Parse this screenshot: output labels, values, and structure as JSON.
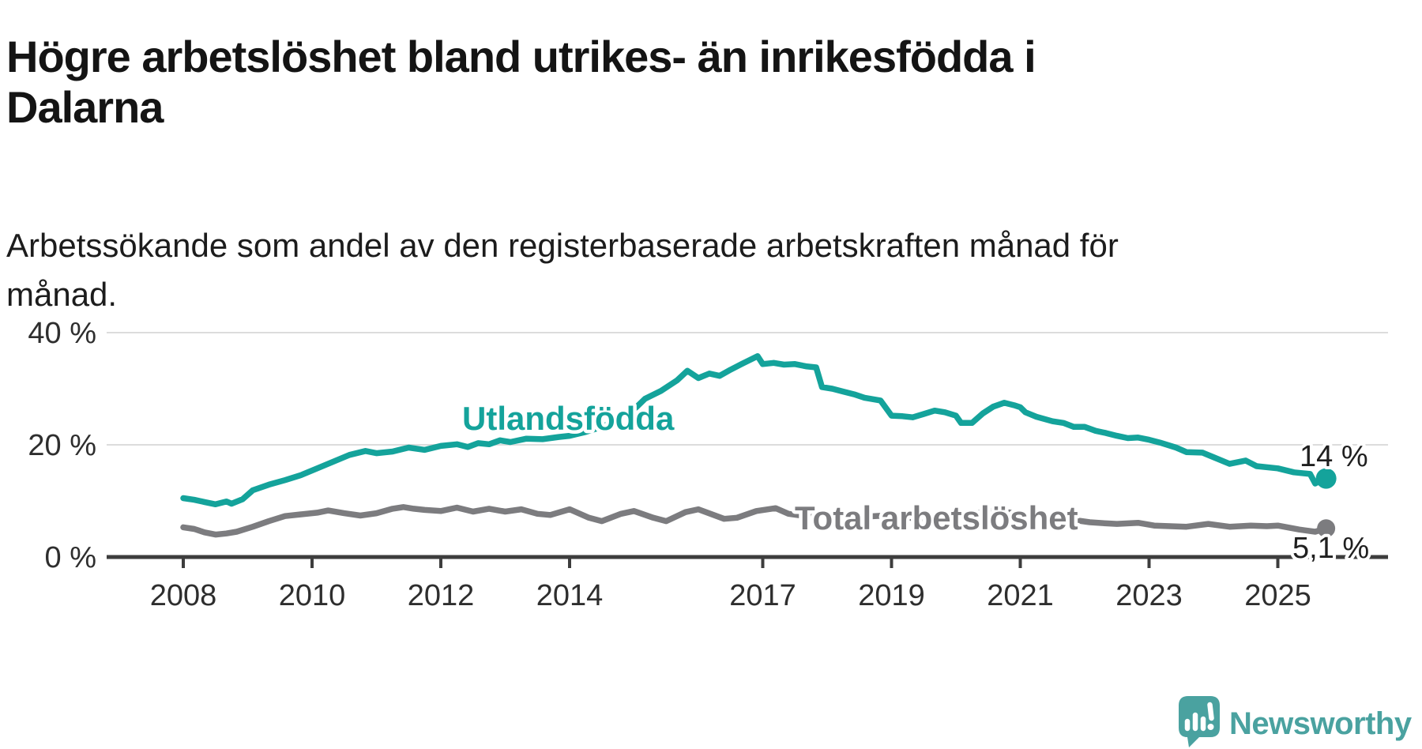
{
  "title": {
    "line1": "Högre arbetslöshet bland utrikes- än inrikesfödda i",
    "line2": "Dalarna"
  },
  "subtitle": {
    "line1": "Arbetssökande som andel av den registerbaserade arbetskraften månad för",
    "line2": "månad."
  },
  "branding": {
    "logo_text": "Newsworthy"
  },
  "colors": {
    "accent_teal": "#14a39b",
    "line_gray": "#7c7c7f",
    "logo_teal": "#4aa2a0",
    "axis_dark": "#3d3d3d",
    "grid_light": "#dcdcdc",
    "text_dark": "#2e2e2e"
  },
  "chart_data": {
    "type": "line",
    "title": "Högre arbetslöshet bland utrikes- än inrikesfödda i Dalarna",
    "subtitle": "Arbetssökande som andel av den registerbaserade arbetskraften månad för månad.",
    "xlabel": "",
    "ylabel": "",
    "x_range": [
      2008.0,
      2025.75
    ],
    "ylim": [
      0,
      40
    ],
    "grid": "horizontal",
    "legend_position": "inline-labels",
    "x_axis": {
      "tick_years": [
        2008,
        2010,
        2012,
        2014,
        2017,
        2019,
        2021,
        2023,
        2025
      ],
      "tick_labels": [
        "2008",
        "2010",
        "2012",
        "2014",
        "2017",
        "2019",
        "2021",
        "2023",
        "2025"
      ]
    },
    "y_axis": {
      "tick_values": [
        0,
        20,
        40
      ],
      "tick_labels": [
        "0 %",
        "20 %",
        "40 %"
      ]
    },
    "series": [
      {
        "name": "Utlandsfödda",
        "color": "#14a39b",
        "end_label": "14 %",
        "end_value": 14.0,
        "points": [
          [
            2008.0,
            10.5
          ],
          [
            2008.17,
            10.2
          ],
          [
            2008.33,
            9.8
          ],
          [
            2008.5,
            9.4
          ],
          [
            2008.67,
            9.9
          ],
          [
            2008.75,
            9.5
          ],
          [
            2008.92,
            10.3
          ],
          [
            2009.08,
            11.9
          ],
          [
            2009.33,
            12.9
          ],
          [
            2009.58,
            13.7
          ],
          [
            2009.83,
            14.6
          ],
          [
            2010.08,
            15.8
          ],
          [
            2010.33,
            17.0
          ],
          [
            2010.58,
            18.2
          ],
          [
            2010.83,
            18.9
          ],
          [
            2011.0,
            18.5
          ],
          [
            2011.25,
            18.8
          ],
          [
            2011.5,
            19.5
          ],
          [
            2011.75,
            19.1
          ],
          [
            2012.0,
            19.8
          ],
          [
            2012.25,
            20.1
          ],
          [
            2012.42,
            19.6
          ],
          [
            2012.58,
            20.3
          ],
          [
            2012.75,
            20.1
          ],
          [
            2012.92,
            20.8
          ],
          [
            2013.08,
            20.5
          ],
          [
            2013.33,
            21.1
          ],
          [
            2013.58,
            21.0
          ],
          [
            2013.83,
            21.4
          ],
          [
            2014.0,
            21.6
          ],
          [
            2014.25,
            22.3
          ],
          [
            2014.5,
            23.2
          ],
          [
            2014.75,
            24.5
          ],
          [
            2015.0,
            26.3
          ],
          [
            2015.17,
            28.2
          ],
          [
            2015.42,
            29.6
          ],
          [
            2015.67,
            31.5
          ],
          [
            2015.83,
            33.2
          ],
          [
            2016.0,
            31.9
          ],
          [
            2016.17,
            32.7
          ],
          [
            2016.33,
            32.3
          ],
          [
            2016.5,
            33.4
          ],
          [
            2016.67,
            34.4
          ],
          [
            2016.92,
            35.8
          ],
          [
            2017.0,
            34.4
          ],
          [
            2017.17,
            34.6
          ],
          [
            2017.33,
            34.3
          ],
          [
            2017.5,
            34.4
          ],
          [
            2017.67,
            34.0
          ],
          [
            2017.83,
            33.8
          ],
          [
            2017.92,
            30.3
          ],
          [
            2018.08,
            30.0
          ],
          [
            2018.25,
            29.5
          ],
          [
            2018.42,
            29.0
          ],
          [
            2018.58,
            28.4
          ],
          [
            2018.83,
            27.9
          ],
          [
            2019.0,
            25.2
          ],
          [
            2019.17,
            25.1
          ],
          [
            2019.33,
            24.9
          ],
          [
            2019.5,
            25.5
          ],
          [
            2019.67,
            26.1
          ],
          [
            2019.83,
            25.8
          ],
          [
            2020.0,
            25.2
          ],
          [
            2020.08,
            23.9
          ],
          [
            2020.25,
            23.9
          ],
          [
            2020.42,
            25.6
          ],
          [
            2020.58,
            26.8
          ],
          [
            2020.75,
            27.5
          ],
          [
            2020.92,
            27.0
          ],
          [
            2021.0,
            26.7
          ],
          [
            2021.08,
            25.8
          ],
          [
            2021.25,
            25.0
          ],
          [
            2021.5,
            24.2
          ],
          [
            2021.67,
            23.9
          ],
          [
            2021.83,
            23.2
          ],
          [
            2022.0,
            23.2
          ],
          [
            2022.17,
            22.5
          ],
          [
            2022.33,
            22.1
          ],
          [
            2022.5,
            21.6
          ],
          [
            2022.67,
            21.2
          ],
          [
            2022.83,
            21.3
          ],
          [
            2023.0,
            20.9
          ],
          [
            2023.17,
            20.4
          ],
          [
            2023.42,
            19.5
          ],
          [
            2023.58,
            18.7
          ],
          [
            2023.83,
            18.6
          ],
          [
            2024.0,
            17.8
          ],
          [
            2024.25,
            16.6
          ],
          [
            2024.5,
            17.2
          ],
          [
            2024.67,
            16.2
          ],
          [
            2025.0,
            15.8
          ],
          [
            2025.25,
            15.1
          ],
          [
            2025.5,
            14.8
          ],
          [
            2025.58,
            13.1
          ],
          [
            2025.67,
            13.7
          ],
          [
            2025.75,
            14.0
          ]
        ]
      },
      {
        "name": "Total arbetslöshet",
        "color": "#7c7c7f",
        "end_label": "5,1 %",
        "end_value": 5.1,
        "points": [
          [
            2008.0,
            5.3
          ],
          [
            2008.17,
            5.0
          ],
          [
            2008.33,
            4.4
          ],
          [
            2008.5,
            4.0
          ],
          [
            2008.67,
            4.2
          ],
          [
            2008.83,
            4.5
          ],
          [
            2009.08,
            5.4
          ],
          [
            2009.33,
            6.4
          ],
          [
            2009.58,
            7.3
          ],
          [
            2009.83,
            7.6
          ],
          [
            2010.08,
            7.9
          ],
          [
            2010.25,
            8.3
          ],
          [
            2010.5,
            7.8
          ],
          [
            2010.75,
            7.4
          ],
          [
            2011.0,
            7.8
          ],
          [
            2011.25,
            8.6
          ],
          [
            2011.42,
            8.9
          ],
          [
            2011.58,
            8.6
          ],
          [
            2011.75,
            8.4
          ],
          [
            2012.0,
            8.2
          ],
          [
            2012.25,
            8.8
          ],
          [
            2012.5,
            8.1
          ],
          [
            2012.75,
            8.6
          ],
          [
            2013.0,
            8.1
          ],
          [
            2013.25,
            8.5
          ],
          [
            2013.5,
            7.7
          ],
          [
            2013.7,
            7.5
          ],
          [
            2014.0,
            8.5
          ],
          [
            2014.3,
            7.0
          ],
          [
            2014.5,
            6.4
          ],
          [
            2014.8,
            7.7
          ],
          [
            2015.0,
            8.2
          ],
          [
            2015.3,
            7.0
          ],
          [
            2015.5,
            6.4
          ],
          [
            2015.8,
            8.0
          ],
          [
            2016.0,
            8.5
          ],
          [
            2016.4,
            6.8
          ],
          [
            2016.6,
            7.0
          ],
          [
            2016.9,
            8.2
          ],
          [
            2017.2,
            8.7
          ],
          [
            2017.4,
            7.7
          ],
          [
            2017.6,
            7.4
          ],
          [
            2017.9,
            7.9
          ],
          [
            2018.1,
            7.8
          ],
          [
            2018.4,
            7.0
          ],
          [
            2018.6,
            7.2
          ],
          [
            2018.9,
            7.4
          ],
          [
            2019.1,
            7.3
          ],
          [
            2019.4,
            6.8
          ],
          [
            2019.6,
            7.0
          ],
          [
            2019.9,
            7.1
          ],
          [
            2020.1,
            7.2
          ],
          [
            2020.4,
            8.0
          ],
          [
            2020.6,
            8.3
          ],
          [
            2020.8,
            8.0
          ],
          [
            2021.0,
            7.6
          ],
          [
            2021.2,
            6.9
          ],
          [
            2021.42,
            6.3
          ],
          [
            2021.58,
            6.3
          ],
          [
            2021.83,
            6.6
          ],
          [
            2022.08,
            6.2
          ],
          [
            2022.33,
            6.0
          ],
          [
            2022.5,
            5.9
          ],
          [
            2022.83,
            6.1
          ],
          [
            2023.08,
            5.6
          ],
          [
            2023.33,
            5.5
          ],
          [
            2023.58,
            5.4
          ],
          [
            2023.92,
            5.9
          ],
          [
            2024.25,
            5.4
          ],
          [
            2024.58,
            5.6
          ],
          [
            2024.83,
            5.5
          ],
          [
            2025.0,
            5.6
          ],
          [
            2025.33,
            4.9
          ],
          [
            2025.58,
            4.5
          ],
          [
            2025.75,
            5.1
          ]
        ]
      }
    ]
  }
}
